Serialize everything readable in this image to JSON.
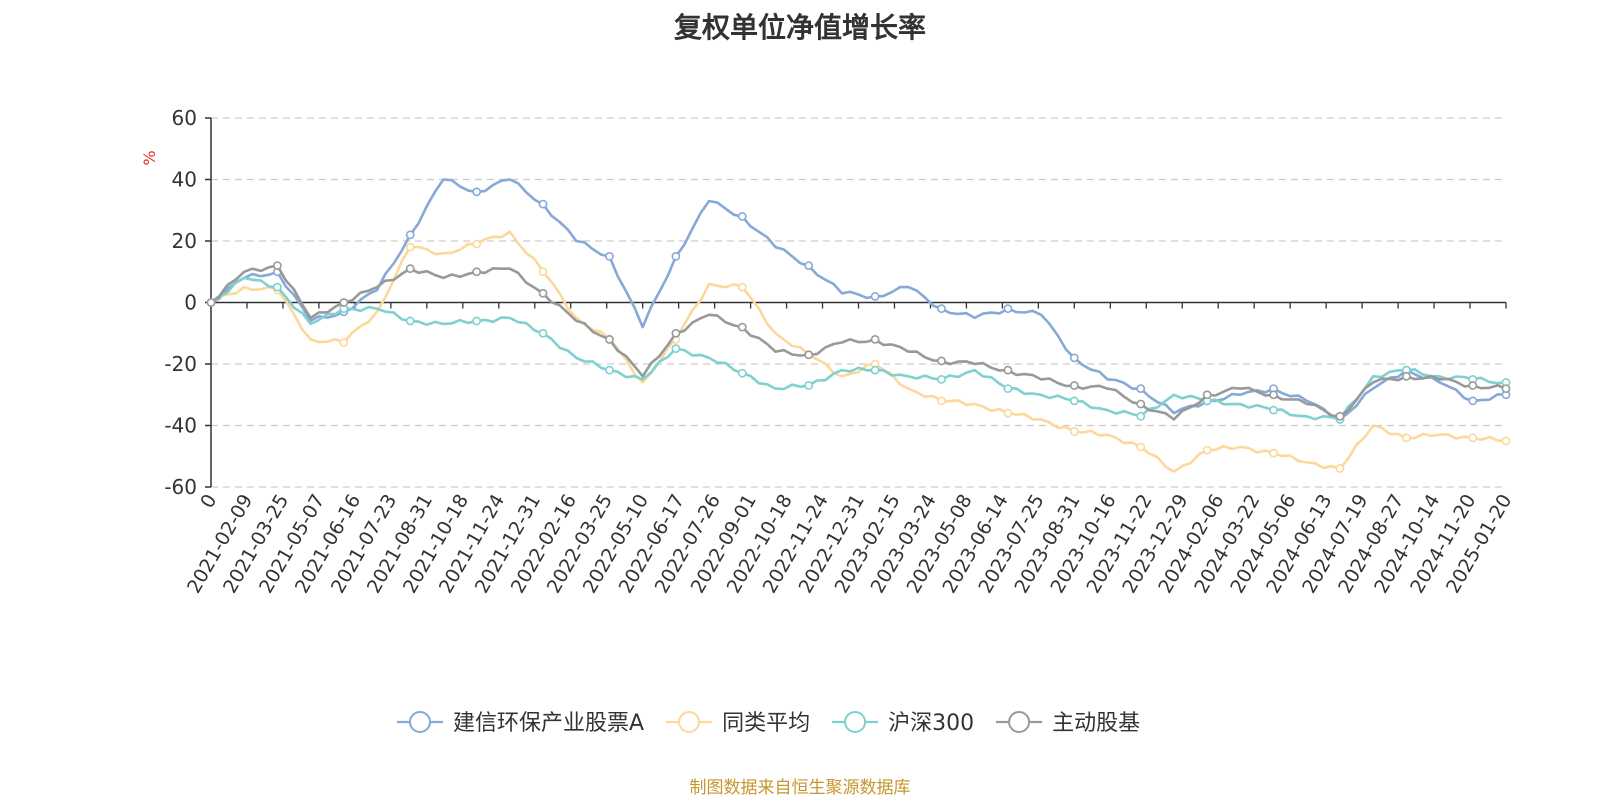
{
  "chart_data": {
    "type": "line",
    "title": "复权单位净值增长率",
    "ylabel": "%",
    "ylim": [
      -60,
      60
    ],
    "yticks": [
      60,
      40,
      20,
      0,
      -20,
      -40,
      -60
    ],
    "grid": true,
    "legend_position": "bottom",
    "x_tick_labels": [
      "0",
      "2021-02-09",
      "2021-03-25",
      "2021-05-07",
      "2021-06-16",
      "2021-07-23",
      "2021-08-31",
      "2021-10-18",
      "2021-11-24",
      "2021-12-31",
      "2022-02-16",
      "2022-03-25",
      "2022-05-10",
      "2022-06-17",
      "2022-07-26",
      "2022-09-01",
      "2022-10-18",
      "2022-11-24",
      "2022-12-31",
      "2023-02-15",
      "2023-03-24",
      "2023-05-08",
      "2023-06-14",
      "2023-07-25",
      "2023-08-31",
      "2023-10-16",
      "2023-11-22",
      "2023-12-29",
      "2024-02-06",
      "2024-03-22",
      "2024-05-06",
      "2024-06-13",
      "2024-07-19",
      "2024-08-27",
      "2024-10-14",
      "2024-11-20",
      "2025-01-20"
    ],
    "series": [
      {
        "name": "建信环保产业股票A",
        "color": "#86a9d8",
        "values": [
          0,
          8,
          10,
          -6,
          -3,
          4,
          22,
          40,
          36,
          40,
          32,
          20,
          15,
          -8,
          15,
          33,
          28,
          18,
          12,
          3,
          2,
          5,
          -2,
          -5,
          -2,
          -4,
          -18,
          -25,
          -28,
          -36,
          -32,
          -30,
          -28,
          -32,
          -38,
          -28,
          -22,
          -26,
          -32,
          -30
        ]
      },
      {
        "name": "同类平均",
        "color": "#fdd89a",
        "values": [
          0,
          5,
          4,
          -12,
          -13,
          -3,
          18,
          16,
          19,
          23,
          10,
          -5,
          -12,
          -26,
          -12,
          6,
          5,
          -10,
          -17,
          -24,
          -20,
          -28,
          -32,
          -33,
          -36,
          -38,
          -42,
          -43,
          -47,
          -55,
          -48,
          -47,
          -49,
          -52,
          -54,
          -40,
          -44,
          -43,
          -44,
          -45
        ]
      },
      {
        "name": "沪深300",
        "color": "#7fd1d1",
        "values": [
          0,
          8,
          5,
          -7,
          -2,
          -2,
          -6,
          -7,
          -6,
          -5,
          -10,
          -18,
          -22,
          -25,
          -15,
          -18,
          -23,
          -28,
          -27,
          -22,
          -22,
          -24,
          -25,
          -22,
          -28,
          -30,
          -32,
          -35,
          -37,
          -30,
          -32,
          -33,
          -35,
          -37,
          -38,
          -24,
          -22,
          -24,
          -25,
          -26
        ]
      },
      {
        "name": "主动股基",
        "color": "#999999",
        "values": [
          0,
          10,
          12,
          -5,
          0,
          5,
          11,
          8,
          10,
          11,
          3,
          -6,
          -12,
          -24,
          -10,
          -4,
          -8,
          -16,
          -17,
          -13,
          -12,
          -16,
          -19,
          -20,
          -22,
          -25,
          -27,
          -28,
          -33,
          -38,
          -30,
          -28,
          -30,
          -33,
          -37,
          -26,
          -24,
          -25,
          -27,
          -28
        ]
      }
    ]
  },
  "source_note": "制图数据来自恒生聚源数据库"
}
